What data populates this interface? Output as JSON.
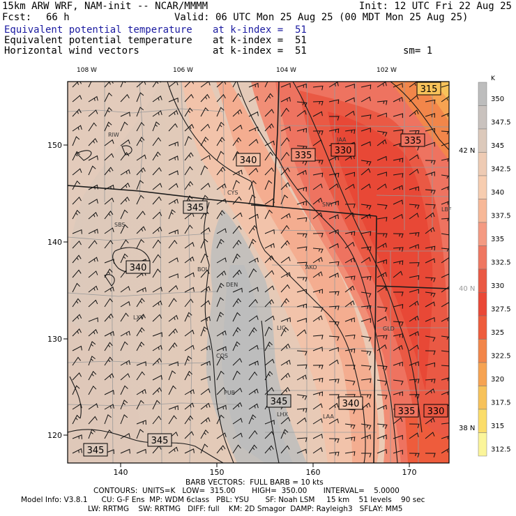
{
  "header": {
    "line1_left": "15km ARW WRF, NAM-init -- NCAR/MMMM",
    "line1_right": "Init: 12 UTC Fri 22 Aug 25",
    "fcst_label": "Fcst:",
    "fcst_value": "66 h",
    "valid": "Valid: 06 UTC Mon 25 Aug 25 (00 MDT Mon 25 Aug 25)",
    "fields": [
      {
        "name": "Equivalent potential temperature",
        "level": "at k-index =  51",
        "color": "#1a1aa0"
      },
      {
        "name": "Equivalent potential temperature",
        "level": "at k-index =  51",
        "color": "#000000"
      },
      {
        "name": "Horizontal wind vectors",
        "level": "at k-index =  51",
        "color": "#000000"
      }
    ],
    "smoothing": "sm= 1"
  },
  "map": {
    "lon_labels": [
      "108 W",
      "106 W",
      "104 W",
      "102 W"
    ],
    "lat_labels": [
      "42 N",
      "40 N",
      "38 N"
    ],
    "y_ticks": [
      "150",
      "140",
      "130",
      "120"
    ],
    "x_ticks": [
      "140",
      "150",
      "160",
      "170"
    ],
    "stations": [
      "RIW",
      "CYS",
      "SNY",
      "SBS",
      "BOU",
      "DEN",
      "AKO",
      "LXV",
      "LIC",
      "COS",
      "PUB",
      "LHX",
      "LAA",
      "GLD",
      "LBF",
      "IAA"
    ],
    "contour_labels": [
      "315",
      "335",
      "340",
      "335",
      "330",
      "345",
      "340",
      "345",
      "340",
      "335",
      "330",
      "345",
      "345"
    ]
  },
  "colorbar": {
    "unit": "K",
    "levels": [
      "350",
      "347.5",
      "345",
      "342.5",
      "340",
      "337.5",
      "335",
      "332.5",
      "330",
      "327.5",
      "325",
      "322.5",
      "320",
      "317.5",
      "315",
      "312.5"
    ],
    "colors": [
      "#bdbdbd",
      "#c9c2be",
      "#dcc9bb",
      "#eecbb4",
      "#f7cdb0",
      "#f7b898",
      "#f49a82",
      "#ef7761",
      "#ea5944",
      "#ea4836",
      "#ee5c3c",
      "#f2864a",
      "#f6a352",
      "#f7c25a",
      "#fbdd6a",
      "#fbf59a"
    ]
  },
  "footer": {
    "line1": "BARB VECTORS:  FULL BARB = 10 kts",
    "line2": "CONTOURS:  UNITS=K   LOW=  315.00       HIGH=  350.00       INTERVAL=    5.0000",
    "line3": "Model Info: V3.8.1      CU: G-F Ens  MP: WDM 6class   PBL: YSU       SF: Noah LSM     15 km    51 levels    90 sec",
    "line4": "LW: RRTMG    SW: RRTMG   DIFF: full    KM: 2D Smagor  DAMP: Rayleigh3   SFLAY: MM5"
  }
}
